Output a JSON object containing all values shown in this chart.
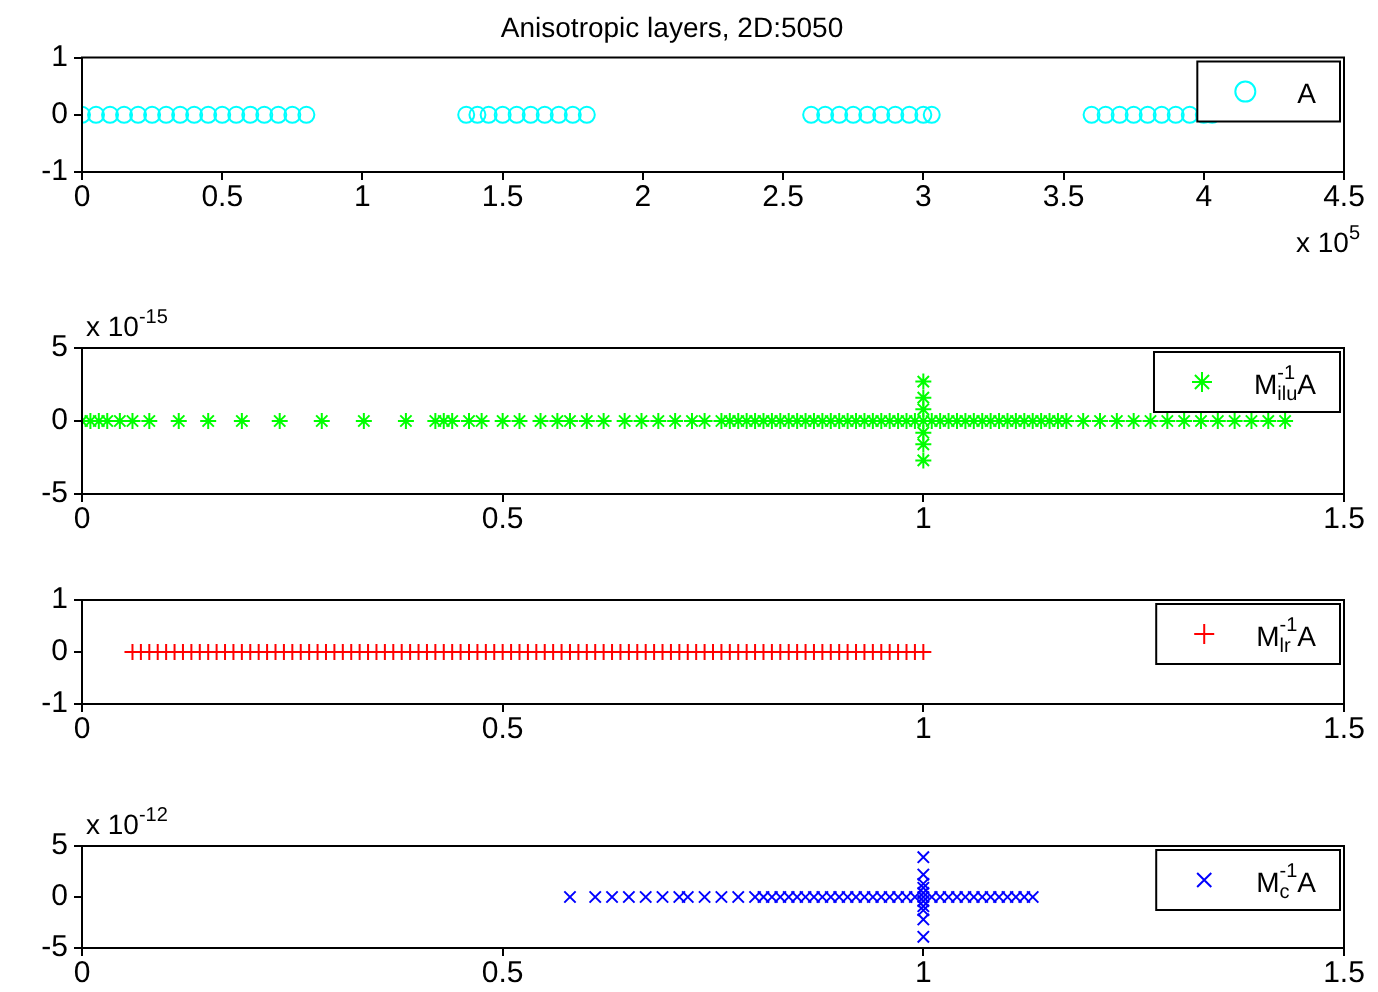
{
  "chart_data": [
    {
      "type": "scatter",
      "title": "Anisotropic layers, 2D:5050",
      "annotations": [
        "x 10$^{5}$"
      ],
      "legend": "top right",
      "marker": "circle",
      "xlim": [
        0,
        4.5
      ],
      "xticks": [
        0,
        0.5,
        1,
        1.5,
        2,
        2.5,
        3,
        3.5,
        4,
        4.5
      ],
      "ylim": [
        -1,
        1
      ],
      "yticks": [
        -1,
        0,
        1
      ],
      "series": [
        {
          "name": "A",
          "color": "#00ffff",
          "x": [
            0,
            0.05,
            0.1,
            0.15,
            0.2,
            0.25,
            0.3,
            0.35,
            0.4,
            0.45,
            0.5,
            0.55,
            0.6,
            0.65,
            0.7,
            0.75,
            0.8,
            1.37,
            1.41,
            1.45,
            1.5,
            1.55,
            1.6,
            1.65,
            1.7,
            1.75,
            1.8,
            2.6,
            2.65,
            2.7,
            2.75,
            2.8,
            2.85,
            2.9,
            2.95,
            3,
            3.03,
            3.6,
            3.65,
            3.7,
            3.75,
            3.8,
            3.85,
            3.9,
            3.95,
            4,
            4.03
          ],
          "values": [
            0,
            0,
            0,
            0,
            0,
            0,
            0,
            0,
            0,
            0,
            0,
            0,
            0,
            0,
            0,
            0,
            0,
            0,
            0,
            0,
            0,
            0,
            0,
            0,
            0,
            0,
            0,
            0,
            0,
            0,
            0,
            0,
            0,
            0,
            0,
            0,
            0,
            0,
            0,
            0,
            0,
            0,
            0,
            0,
            0,
            0,
            0
          ]
        }
      ]
    },
    {
      "type": "scatter",
      "annotations": [
        "x 10$^{-15}$"
      ],
      "legend": "top right",
      "xlim": [
        0,
        1.5
      ],
      "xticks": [
        0,
        0.5,
        1,
        1.5
      ],
      "ylim": [
        -5,
        5
      ],
      "yticks": [
        -5,
        0,
        5
      ],
      "series": [
        {
          "name": "M$_{ilu}$$^{-1}$A",
          "color": "#00ff00",
          "x": [
            0,
            0.01,
            0.02,
            0.03,
            0.045,
            0.06,
            0.08,
            0.115,
            0.15,
            0.19,
            0.235,
            0.285,
            0.335,
            0.385,
            0.42,
            0.43,
            0.44,
            0.46,
            0.475,
            0.5,
            0.52,
            0.545,
            0.565,
            0.58,
            0.6,
            0.62,
            0.645,
            0.665,
            0.685,
            0.705,
            0.725,
            0.74,
            0.76,
            0.77,
            0.78,
            0.79,
            0.8,
            0.81,
            0.82,
            0.83,
            0.84,
            0.85,
            0.86,
            0.87,
            0.88,
            0.89,
            0.9,
            0.91,
            0.92,
            0.93,
            0.94,
            0.95,
            0.96,
            0.97,
            0.98,
            0.99,
            1,
            1.01,
            1.02,
            1.03,
            1.04,
            1.05,
            1.06,
            1.07,
            1.08,
            1.09,
            1.1,
            1.11,
            1.12,
            1.13,
            1.14,
            1.15,
            1.16,
            1.17,
            1.19,
            1.21,
            1.23,
            1.25,
            1.27,
            1.29,
            1.31,
            1.33,
            1.35,
            1.37,
            1.39,
            1.41,
            1.43,
            1,
            1,
            1,
            1,
            1,
            1
          ],
          "values": [
            0,
            0,
            0,
            0,
            0,
            0,
            0,
            0,
            0,
            0,
            0,
            0,
            0,
            0,
            0,
            0,
            0,
            0,
            0,
            0,
            0,
            0,
            0,
            0,
            0,
            0,
            0,
            0,
            0,
            0,
            0,
            0,
            0,
            0,
            0,
            0,
            0,
            0,
            0,
            0,
            0,
            0,
            0,
            0,
            0,
            0,
            0,
            0,
            0,
            0,
            0,
            0,
            0,
            0,
            0,
            0,
            0,
            0,
            0,
            0,
            0,
            0,
            0,
            0,
            0,
            0,
            0,
            0,
            0,
            0,
            0,
            0,
            0,
            0,
            0,
            0,
            0,
            0,
            0,
            0,
            0,
            0,
            0,
            0,
            0,
            0,
            0,
            0.8,
            -0.8,
            1.6,
            -1.6,
            2.7,
            -2.7
          ]
        }
      ]
    },
    {
      "type": "scatter",
      "legend": "top right",
      "marker": "plus",
      "xlim": [
        0,
        1.5
      ],
      "xticks": [
        0,
        0.5,
        1,
        1.5
      ],
      "ylim": [
        -1,
        1
      ],
      "yticks": [
        -1,
        0,
        1
      ],
      "series": [
        {
          "name": "M$_{lr}$$^{-1}$A",
          "color": "#ff0000",
          "x": [
            0.06,
            0.07,
            0.08,
            0.09,
            0.1,
            0.11,
            0.12,
            0.13,
            0.14,
            0.15,
            0.16,
            0.17,
            0.18,
            0.19,
            0.2,
            0.21,
            0.22,
            0.23,
            0.24,
            0.25,
            0.26,
            0.27,
            0.28,
            0.29,
            0.3,
            0.31,
            0.32,
            0.33,
            0.34,
            0.35,
            0.36,
            0.37,
            0.38,
            0.39,
            0.4,
            0.41,
            0.42,
            0.43,
            0.44,
            0.45,
            0.46,
            0.47,
            0.48,
            0.49,
            0.5,
            0.51,
            0.52,
            0.53,
            0.54,
            0.55,
            0.56,
            0.57,
            0.58,
            0.59,
            0.6,
            0.61,
            0.62,
            0.63,
            0.64,
            0.65,
            0.66,
            0.67,
            0.68,
            0.69,
            0.7,
            0.71,
            0.72,
            0.73,
            0.74,
            0.75,
            0.76,
            0.77,
            0.78,
            0.79,
            0.8,
            0.81,
            0.82,
            0.83,
            0.84,
            0.85,
            0.86,
            0.87,
            0.88,
            0.89,
            0.9,
            0.91,
            0.92,
            0.93,
            0.94,
            0.95,
            0.96,
            0.97,
            0.98,
            0.99,
            1
          ],
          "values": [
            0,
            0,
            0,
            0,
            0,
            0,
            0,
            0,
            0,
            0,
            0,
            0,
            0,
            0,
            0,
            0,
            0,
            0,
            0,
            0,
            0,
            0,
            0,
            0,
            0,
            0,
            0,
            0,
            0,
            0,
            0,
            0,
            0,
            0,
            0,
            0,
            0,
            0,
            0,
            0,
            0,
            0,
            0,
            0,
            0,
            0,
            0,
            0,
            0,
            0,
            0,
            0,
            0,
            0,
            0,
            0,
            0,
            0,
            0,
            0,
            0,
            0,
            0,
            0,
            0,
            0,
            0,
            0,
            0,
            0,
            0,
            0,
            0,
            0,
            0,
            0,
            0,
            0,
            0,
            0,
            0,
            0,
            0,
            0,
            0,
            0,
            0,
            0,
            0,
            0,
            0,
            0,
            0,
            0,
            0
          ]
        }
      ]
    },
    {
      "type": "scatter",
      "annotations": [
        "x 10$^{-12}$"
      ],
      "legend": "top right",
      "marker": "cross",
      "xlim": [
        0,
        1.5
      ],
      "xticks": [
        0,
        0.5,
        1,
        1.5
      ],
      "ylim": [
        -5,
        5
      ],
      "yticks": [
        -5,
        0,
        5
      ],
      "series": [
        {
          "name": "M$_{c}$$^{-1}$A",
          "color": "#0000ff",
          "x": [
            0.58,
            0.61,
            0.63,
            0.65,
            0.67,
            0.69,
            0.71,
            0.72,
            0.74,
            0.76,
            0.78,
            0.8,
            0.81,
            0.82,
            0.83,
            0.84,
            0.85,
            0.86,
            0.87,
            0.88,
            0.89,
            0.9,
            0.91,
            0.92,
            0.93,
            0.94,
            0.95,
            0.96,
            0.97,
            0.98,
            0.99,
            1,
            1.01,
            1.02,
            1.03,
            1.04,
            1.05,
            1.06,
            1.07,
            1.08,
            1.09,
            1.1,
            1.11,
            1.12,
            1.13,
            1,
            1,
            1,
            1,
            1,
            1,
            1,
            1,
            1,
            1
          ],
          "values": [
            0,
            0,
            0,
            0,
            0,
            0,
            0,
            0,
            0,
            0,
            0,
            0,
            0,
            0,
            0,
            0,
            0,
            0,
            0,
            0,
            0,
            0,
            0,
            0,
            0,
            0,
            0,
            0,
            0,
            0,
            0,
            0,
            0,
            0,
            0,
            0,
            0,
            0,
            0,
            0,
            0,
            0,
            0,
            0,
            0,
            0.4,
            -0.4,
            0.9,
            -0.9,
            1.3,
            -1.3,
            2.2,
            -2.2,
            3.9,
            -3.9
          ]
        }
      ]
    }
  ]
}
